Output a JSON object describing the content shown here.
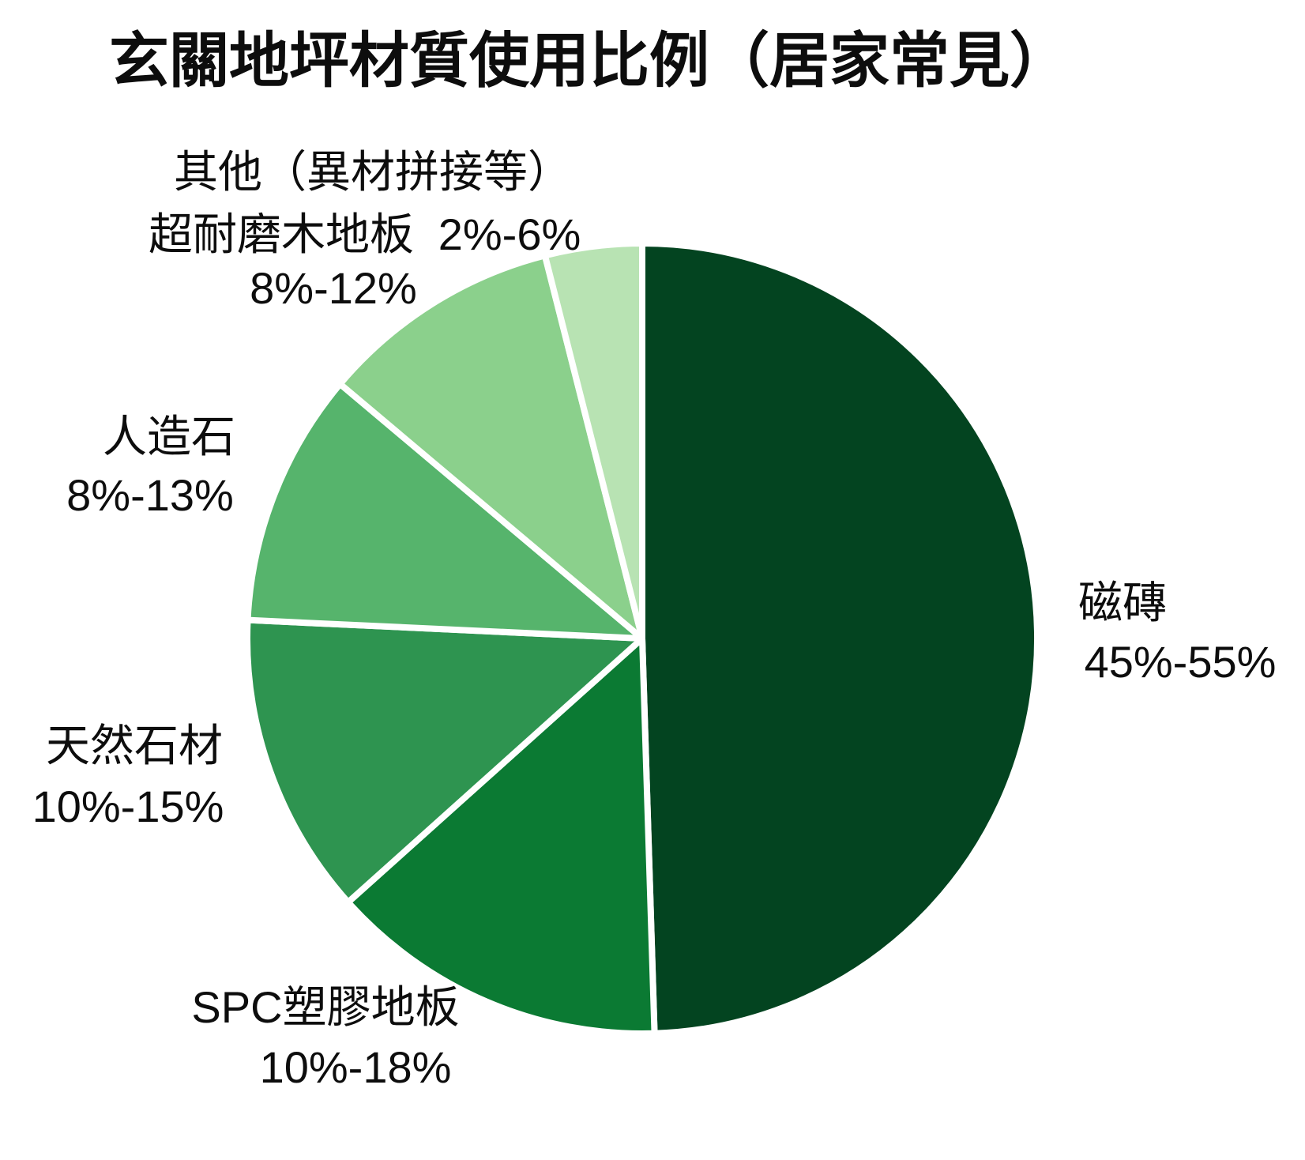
{
  "title": "玄關地坪材質使用比例（居家常見）",
  "chart_data": {
    "type": "pie",
    "title": "玄關地坪材質使用比例（居家常見）",
    "start_angle_deg": 0,
    "direction": "clockwise",
    "legend": "none",
    "background_color": "#FFFFFF",
    "slice_gap_color": "#FFFFFF",
    "value_note": "values are midpoints of the labeled percentage ranges",
    "slices": [
      {
        "label": "磁磚",
        "range_label": "45%-55%",
        "value": 50,
        "color": "#034420"
      },
      {
        "label": "SPC塑膠地板",
        "range_label": "10%-18%",
        "value": 14,
        "color": "#0B7A33"
      },
      {
        "label": "天然石材",
        "range_label": "10%-15%",
        "value": 12.5,
        "color": "#2E9450"
      },
      {
        "label": "人造石",
        "range_label": "8%-13%",
        "value": 10.5,
        "color": "#56B46C"
      },
      {
        "label": "超耐磨木地板",
        "range_label": "8%-12%",
        "value": 10,
        "color": "#8BD08C"
      },
      {
        "label": "其他（異材拼接等）",
        "range_label": "2%-6%",
        "value": 4,
        "color": "#B8E3B3"
      }
    ]
  }
}
